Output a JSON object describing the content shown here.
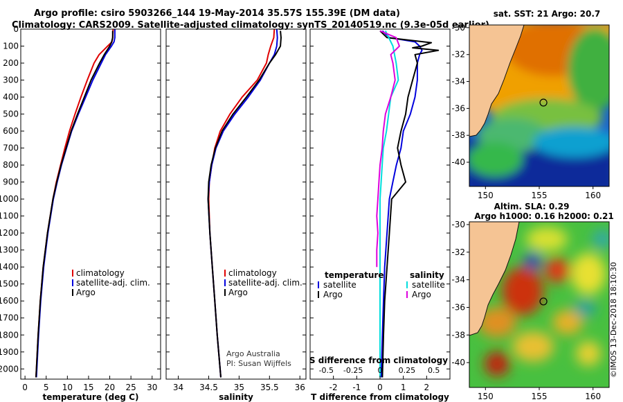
{
  "header": {
    "line1": "Argo profile: csiro 5903266_144 19-May-2014 35.57S 155.39E (DM data)",
    "line2": "Climatology: CARS2009. Satellite-adjusted climatology: synTS_20140519.nc (9.3e-05d earlier)"
  },
  "footer": {
    "stamp": "©IMOS 13-Dec-2018 18:10:30"
  },
  "colors": {
    "clim": "#e00000",
    "sat": "#0000dd",
    "argo": "#000000",
    "sat_s": "#00dddd",
    "argo_s": "#dd00dd",
    "land": "#f5c494",
    "coast": "#111111"
  },
  "chart_data": [
    {
      "type": "line",
      "title": "Temperature profile",
      "xlabel": "temperature (deg C)",
      "ylabel": "",
      "xlim": [
        -1,
        32
      ],
      "ylim": [
        2060,
        0
      ],
      "xticks": [
        0,
        5,
        10,
        15,
        20,
        25,
        30
      ],
      "yticks": [
        0,
        100,
        200,
        300,
        400,
        500,
        600,
        700,
        800,
        900,
        1000,
        1100,
        1200,
        1300,
        1400,
        1500,
        1600,
        1700,
        1800,
        1900,
        2000
      ],
      "legend": [
        "climatology",
        "satellite-adj. clim.",
        "Argo"
      ],
      "series": [
        {
          "name": "climatology",
          "key": "clim",
          "depth": [
            0,
            50,
            75,
            100,
            150,
            200,
            300,
            400,
            500,
            600,
            700,
            800,
            900,
            1000,
            1200,
            1400,
            1600,
            1800,
            2050
          ],
          "values": [
            20.8,
            20.7,
            20.5,
            19.5,
            17.5,
            16.3,
            14.7,
            13.2,
            11.8,
            10.5,
            9.4,
            8.4,
            7.4,
            6.6,
            5.3,
            4.3,
            3.6,
            3.1,
            2.6
          ]
        },
        {
          "name": "satellite-adj. clim.",
          "key": "sat",
          "depth": [
            0,
            50,
            75,
            100,
            150,
            200,
            300,
            400,
            500,
            600,
            700,
            800,
            900,
            1000,
            1200,
            1400,
            1600,
            1800,
            2050
          ],
          "values": [
            21.2,
            21.2,
            21.0,
            20.4,
            19.0,
            18.0,
            16.0,
            14.3,
            12.6,
            11.0,
            9.8,
            8.6,
            7.6,
            6.7,
            5.4,
            4.4,
            3.7,
            3.2,
            2.7
          ]
        },
        {
          "name": "Argo",
          "key": "argo",
          "depth": [
            10,
            50,
            80,
            100,
            150,
            200,
            300,
            400,
            500,
            600,
            700,
            800,
            900,
            1000,
            1200,
            1400,
            1600,
            1800,
            2050
          ],
          "values": [
            20.7,
            20.7,
            20.4,
            20.0,
            18.7,
            17.6,
            15.6,
            14.0,
            12.4,
            10.9,
            9.7,
            8.5,
            7.5,
            6.6,
            5.3,
            4.3,
            3.6,
            3.1,
            2.6
          ]
        }
      ]
    },
    {
      "type": "line",
      "title": "Salinity profile",
      "xlabel": "salinity",
      "xlim": [
        33.8,
        36.1
      ],
      "ylim": [
        2060,
        0
      ],
      "xticks": [
        34,
        34.5,
        35,
        35.5,
        36
      ],
      "legend": [
        "climatology",
        "satellite-adj. clim.",
        "Argo"
      ],
      "annotation": [
        "Argo Australia",
        "PI: Susan Wijffels"
      ],
      "series": [
        {
          "name": "climatology",
          "key": "clim",
          "depth": [
            0,
            50,
            100,
            150,
            200,
            300,
            400,
            500,
            600,
            700,
            800,
            900,
            1000,
            1200,
            1400,
            1600,
            1800,
            2050
          ],
          "values": [
            35.58,
            35.57,
            35.52,
            35.48,
            35.45,
            35.3,
            35.05,
            34.85,
            34.69,
            34.6,
            34.55,
            34.51,
            34.5,
            34.52,
            34.56,
            34.6,
            34.64,
            34.7
          ]
        },
        {
          "name": "satellite-adj. clim.",
          "key": "sat",
          "depth": [
            0,
            50,
            100,
            150,
            200,
            300,
            400,
            500,
            600,
            700,
            800,
            900,
            1000,
            1200,
            1400,
            1600,
            1800,
            2050
          ],
          "values": [
            35.62,
            35.63,
            35.62,
            35.58,
            35.5,
            35.35,
            35.15,
            34.93,
            34.74,
            34.62,
            34.55,
            34.51,
            34.49,
            34.52,
            34.56,
            34.6,
            34.64,
            34.7
          ]
        },
        {
          "name": "Argo",
          "key": "argo",
          "depth": [
            10,
            50,
            100,
            150,
            200,
            300,
            400,
            500,
            600,
            700,
            800,
            900,
            1000,
            1200,
            1400,
            1600,
            1800,
            2050
          ],
          "values": [
            35.68,
            35.69,
            35.68,
            35.6,
            35.5,
            35.33,
            35.12,
            34.9,
            34.72,
            34.61,
            34.54,
            34.5,
            34.49,
            34.52,
            34.56,
            34.6,
            34.64,
            34.7
          ]
        }
      ]
    },
    {
      "type": "line",
      "title": "Difference from climatology",
      "xlabel": "T difference from climatology",
      "xlabel2": "S difference from climatology",
      "xlim": [
        -3,
        3
      ],
      "ylim": [
        2060,
        0
      ],
      "xticks": [
        -2,
        -1,
        0,
        1,
        2
      ],
      "xticks2": [
        -0.5,
        -0.25,
        0,
        0.25,
        0.5
      ],
      "xticks2_labels": [
        "-0.5",
        "-0.25",
        "0",
        "0.25",
        "0.5"
      ],
      "legend_titles": [
        "temperature",
        "salinity"
      ],
      "legend_t": [
        "satellite",
        "Argo"
      ],
      "legend_s": [
        "satellite",
        "Argo"
      ],
      "series": [
        {
          "name": "T satellite",
          "key": "sat",
          "depth": [
            10,
            50,
            75,
            100,
            125,
            150,
            200,
            300,
            400,
            500,
            600,
            700,
            800,
            900,
            1000,
            1200,
            1400,
            1600,
            1800,
            2050
          ],
          "values": [
            0.1,
            0.4,
            1.5,
            1.7,
            1.8,
            1.7,
            1.6,
            1.6,
            1.5,
            1.3,
            1.0,
            0.9,
            0.7,
            0.55,
            0.4,
            0.3,
            0.2,
            0.15,
            0.1,
            0.05
          ]
        },
        {
          "name": "T Argo",
          "key": "argo",
          "depth": [
            10,
            50,
            80,
            100,
            110,
            125,
            150,
            200,
            300,
            400,
            500,
            600,
            700,
            800,
            900,
            1000,
            1200,
            1400,
            1600,
            1800,
            2050
          ],
          "values": [
            0.0,
            0.3,
            2.2,
            1.8,
            1.4,
            2.5,
            1.5,
            1.6,
            1.4,
            1.2,
            1.1,
            0.9,
            0.75,
            0.9,
            1.1,
            0.5,
            0.4,
            0.3,
            0.2,
            0.15,
            0.1
          ]
        },
        {
          "name": "S satellite",
          "key": "sat_s",
          "depth": [
            10,
            100,
            200,
            300,
            400,
            500,
            600,
            700,
            800,
            900,
            1000,
            1200,
            1400,
            1600,
            1800,
            2050
          ],
          "values": [
            0.05,
            0.12,
            0.15,
            0.17,
            0.1,
            0.08,
            0.06,
            0.03,
            0.02,
            0.01,
            0.0,
            0.0,
            0.0,
            0.0,
            0.0,
            0.0
          ]
        },
        {
          "name": "S Argo",
          "key": "argo_s",
          "depth": [
            10,
            50,
            100,
            150,
            200,
            300,
            400,
            500,
            600,
            700,
            800,
            900,
            1000,
            1100,
            1200,
            1300,
            1400
          ],
          "values": [
            0.0,
            0.15,
            0.18,
            0.1,
            0.12,
            0.14,
            0.1,
            0.05,
            0.03,
            0.02,
            0.0,
            -0.01,
            -0.02,
            -0.03,
            -0.02,
            -0.03,
            -0.03
          ]
        }
      ]
    },
    {
      "type": "heatmap",
      "title": "sat. SST: 21 Argo: 20.7",
      "xlim": [
        148.5,
        161.5
      ],
      "ylim": [
        -41.8,
        -29.8
      ],
      "xticks": [
        150,
        155,
        160
      ],
      "yticks": [
        -30,
        -32,
        -34,
        -36,
        -38,
        -40
      ],
      "marker": {
        "lon": 155.39,
        "lat": -35.57
      }
    },
    {
      "type": "heatmap",
      "title": "Altim. SLA: 0.29",
      "subtitle": "Argo h1000: 0.16 h2000: 0.21",
      "xlim": [
        148.5,
        161.5
      ],
      "ylim": [
        -41.8,
        -29.8
      ],
      "xticks": [
        150,
        155,
        160
      ],
      "yticks": [
        -30,
        -32,
        -34,
        -36,
        -38,
        -40
      ],
      "marker": {
        "lon": 155.39,
        "lat": -35.57
      }
    }
  ]
}
